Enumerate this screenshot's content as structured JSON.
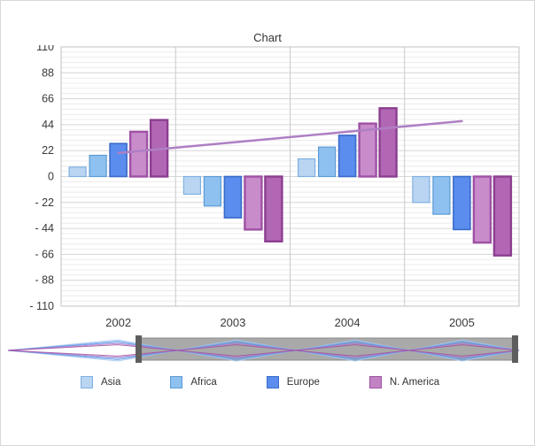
{
  "chart_data": {
    "type": "bar",
    "title": "Chart",
    "categories": [
      "2002",
      "2003",
      "2004",
      "2005"
    ],
    "series": [
      {
        "name": "Asia",
        "fill": "#b9d5f2",
        "stroke": "#7fb0e3",
        "stroke_width": 1.2,
        "values": [
          8,
          -15,
          15,
          -22
        ]
      },
      {
        "name": "Africa",
        "fill": "#8ec1ef",
        "stroke": "#5b9bd5",
        "stroke_width": 1.2,
        "values": [
          18,
          -25,
          25,
          -32
        ]
      },
      {
        "name": "Europe",
        "fill": "#5b8def",
        "stroke": "#3a6bc9",
        "stroke_width": 1.6,
        "values": [
          28,
          -35,
          35,
          -45
        ]
      },
      {
        "name": "",
        "fill": "#c88cca",
        "stroke": "#9f51a5",
        "stroke_width": 2.4,
        "values": [
          38,
          -45,
          45,
          -56
        ]
      },
      {
        "name": "N. America",
        "fill": "#b267b4",
        "stroke": "#8c3e90",
        "stroke_width": 2.4,
        "values": [
          48,
          -55,
          58,
          -67
        ]
      }
    ],
    "trendline": {
      "color": "#ae7fc4",
      "x_start_category": 0,
      "x_end_category": 3,
      "y_start": 20,
      "y_end": 47
    },
    "ylim": [
      -110,
      110
    ],
    "ytick_values": [
      110,
      88,
      66,
      44,
      22,
      0,
      -22,
      -44,
      -66,
      -88,
      -110
    ],
    "ytick_labels": [
      "110",
      "88",
      "66",
      "44",
      "22",
      "0",
      "- 22",
      "- 44",
      "- 66",
      "- 88",
      "- 110"
    ],
    "grid": {
      "minor_per_major": 5,
      "minor_color": "#ececec",
      "major_color": "#d6d6d6",
      "vline_color": "#c9c9c9",
      "plot_border": "#c0c0c0"
    }
  },
  "navigator": {
    "track_color": "#a9a9a9",
    "track_border": "#8a8a8a",
    "handle_color": "#5e5e5e",
    "line_colors": [
      "#a8c8ee",
      "#79aee8",
      "#5b8def",
      "#b87fc0",
      "#9f51a5"
    ]
  },
  "legend": {
    "items": [
      {
        "label": "Asia",
        "fill": "#b9d5f2",
        "stroke": "#7fb0e3"
      },
      {
        "label": "Africa",
        "fill": "#8ec1ef",
        "stroke": "#5b9bd5"
      },
      {
        "label": "Europe",
        "fill": "#5b8def",
        "stroke": "#3a6bc9"
      },
      {
        "label": "N. America",
        "fill": "#c183c3",
        "stroke": "#9f51a5"
      }
    ]
  }
}
